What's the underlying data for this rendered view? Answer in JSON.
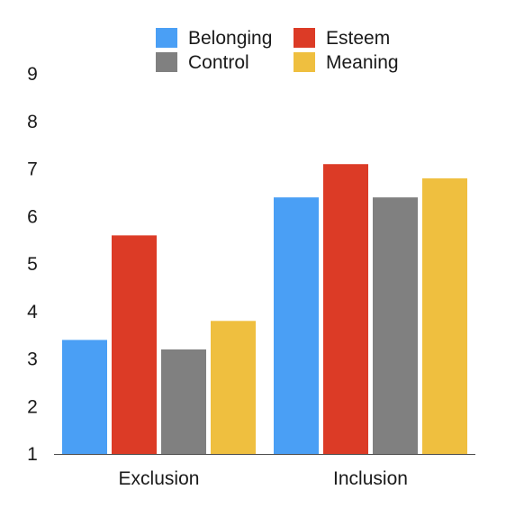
{
  "chart_data": {
    "type": "bar",
    "title": "",
    "xlabel": "",
    "ylabel": "",
    "categories": [
      "Exclusion",
      "Inclusion"
    ],
    "series": [
      {
        "name": "Belonging",
        "color": "#4a9ff5",
        "values": [
          3.4,
          6.4
        ]
      },
      {
        "name": "Esteem",
        "color": "#dc3b26",
        "values": [
          5.6,
          7.1
        ]
      },
      {
        "name": "Control",
        "color": "#808080",
        "values": [
          3.2,
          6.4
        ]
      },
      {
        "name": "Meaning",
        "color": "#efbf3f",
        "values": [
          3.8,
          6.8
        ]
      }
    ],
    "ylim": [
      1,
      9
    ],
    "yticks": [
      "1",
      "2",
      "3",
      "4",
      "5",
      "6",
      "7",
      "8",
      "9"
    ],
    "grid": false,
    "legend": "top-center"
  }
}
